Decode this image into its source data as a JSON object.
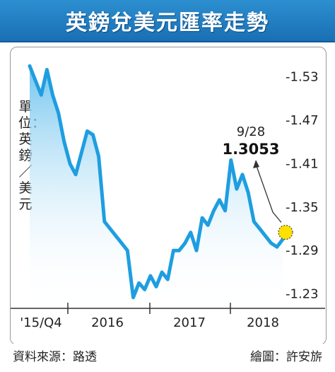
{
  "header": {
    "title": "英鎊兌美元匯率走勢"
  },
  "unit_label": "單位：英鎊／美元",
  "footer": {
    "source": "資料來源：路透",
    "credit": "繪圖：許安旂"
  },
  "colors": {
    "line": "#1e9ee0",
    "fill_top": "#7cc8f0",
    "title_bg": "#1a6fb4",
    "marker": "#ffe000"
  },
  "chart_data": {
    "type": "area",
    "title": "英鎊兌美元匯率走勢",
    "xlabel": "",
    "ylabel": "英鎊／美元",
    "ylim": [
      1.21,
      1.56
    ],
    "x_tick_labels": [
      "'15/Q4",
      "2016",
      "2017",
      "2018"
    ],
    "y_tick_labels": [
      "-1.53",
      "-1.47",
      "-1.41",
      "-1.35",
      "-1.29",
      "-1.23"
    ],
    "y_tick_values": [
      1.53,
      1.47,
      1.41,
      1.35,
      1.29,
      1.23
    ],
    "grid": false,
    "series": [
      {
        "values": [
          1.545,
          1.525,
          1.505,
          1.54,
          1.505,
          1.48,
          1.44,
          1.41,
          1.395,
          1.425,
          1.455,
          1.45,
          1.42,
          1.33,
          1.32,
          1.31,
          1.3,
          1.29,
          1.225,
          1.245,
          1.236,
          1.255,
          1.24,
          1.26,
          1.25,
          1.29,
          1.29,
          1.3,
          1.315,
          1.29,
          1.335,
          1.325,
          1.345,
          1.36,
          1.345,
          1.415,
          1.375,
          1.395,
          1.37,
          1.33,
          1.32,
          1.31,
          1.3,
          1.295,
          1.3053
        ]
      }
    ],
    "annotations": [
      {
        "date": "9/28",
        "value": "1.3053"
      }
    ]
  }
}
